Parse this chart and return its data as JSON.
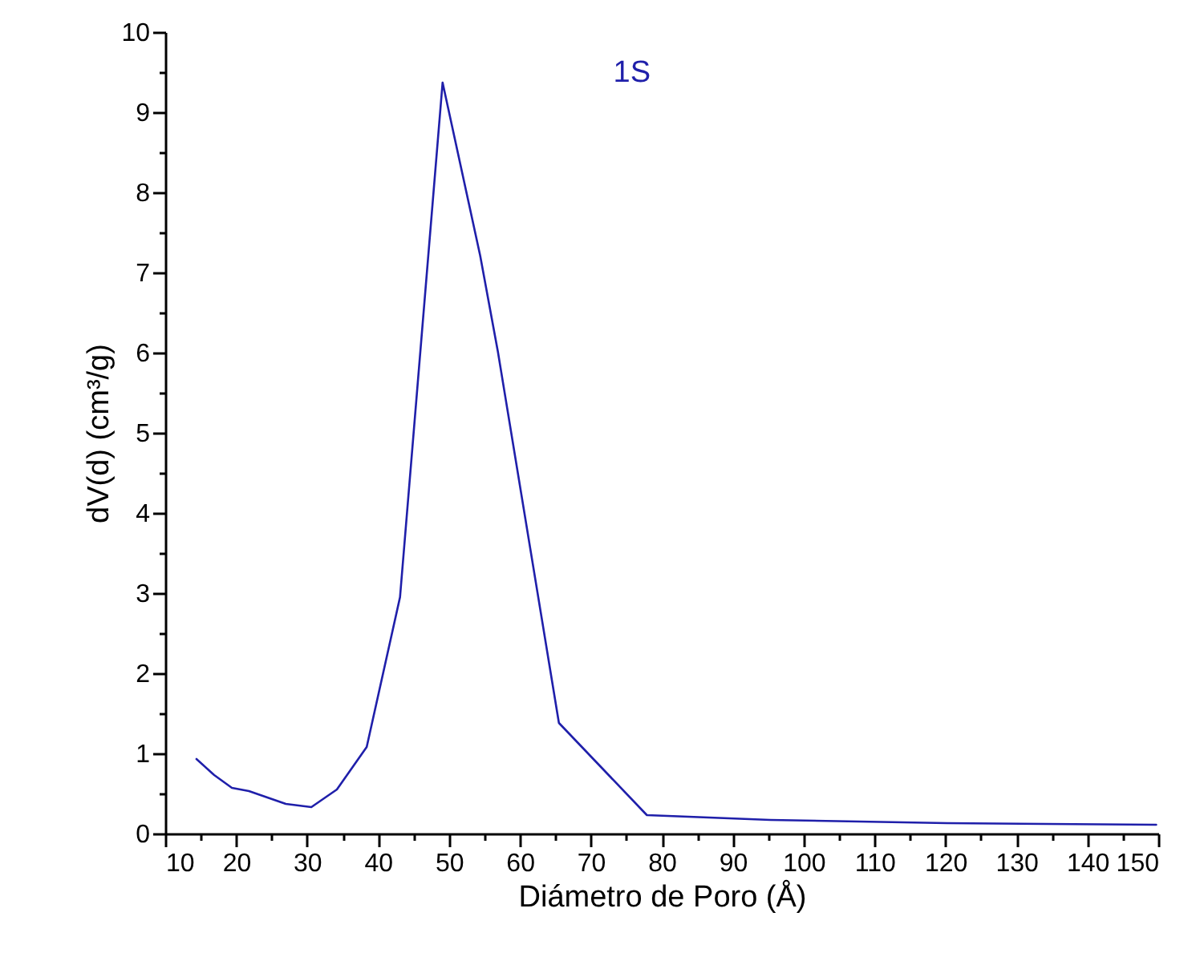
{
  "chart_data": {
    "type": "line",
    "xlabel": "Diámetro de Poro (Å)",
    "ylabel": "dV(d) (cm³/g)",
    "series": [
      {
        "name": "1S",
        "color": "#1f1faa",
        "x": [
          14.4,
          16.9,
          19.4,
          21.8,
          27.0,
          30.6,
          34.2,
          38.4,
          43.1,
          49.1,
          54.4,
          56.9,
          65.5,
          77.9,
          95.3,
          120.2,
          149.7
        ],
        "values": [
          0.93,
          0.73,
          0.57,
          0.53,
          0.37,
          0.33,
          0.55,
          1.08,
          2.95,
          9.37,
          7.21,
          6.01,
          1.38,
          0.23,
          0.17,
          0.13,
          0.11
        ]
      }
    ],
    "xlim": [
      10,
      150
    ],
    "ylim": [
      0,
      10
    ],
    "xticks": [
      10,
      {
        "value": 15,
        "label": null
      },
      20,
      {
        "value": 25,
        "label": null
      },
      30,
      {
        "value": 35,
        "label": null
      },
      40,
      {
        "value": 45,
        "label": null
      },
      50,
      {
        "value": 55,
        "label": null
      },
      60,
      {
        "value": 65,
        "label": null
      },
      70,
      {
        "value": 75,
        "label": null
      },
      80,
      {
        "value": 85,
        "label": null
      },
      90,
      {
        "value": 95,
        "label": null
      },
      100,
      {
        "value": 105,
        "label": null
      },
      110,
      {
        "value": 115,
        "label": null
      },
      120,
      {
        "value": 125,
        "label": null
      },
      130,
      {
        "value": 135,
        "label": null
      },
      140,
      {
        "value": 145,
        "label": null
      },
      150
    ],
    "yticks": [
      0,
      {
        "value": 0.5,
        "label": null
      },
      1,
      {
        "value": 1.5,
        "label": null
      },
      2,
      {
        "value": 2.5,
        "label": null
      },
      3,
      {
        "value": 3.5,
        "label": null
      },
      4,
      {
        "value": 4.5,
        "label": null
      },
      5,
      {
        "value": 5.5,
        "label": null
      },
      6,
      {
        "value": 6.5,
        "label": null
      },
      7,
      {
        "value": 7.5,
        "label": null
      },
      8,
      {
        "value": 8.5,
        "label": null
      },
      9,
      {
        "value": 9.5,
        "label": null
      },
      10
    ],
    "grid": false,
    "legend": false,
    "marker": "none",
    "line_style": "solid"
  }
}
